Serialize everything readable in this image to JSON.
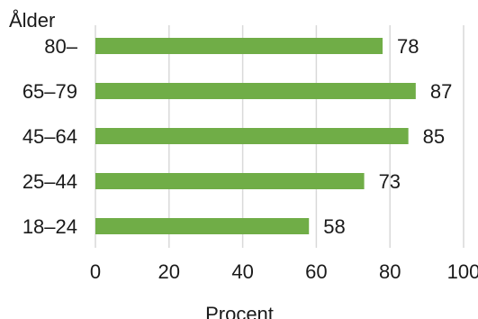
{
  "chart_data": {
    "type": "bar",
    "orientation": "horizontal",
    "category_axis_title": "Ålder",
    "xlabel": "Procent",
    "categories": [
      "80–",
      "65–79",
      "45–64",
      "25–44",
      "18–24"
    ],
    "values": [
      78,
      87,
      85,
      73,
      58
    ],
    "xlim": [
      0,
      100
    ],
    "xticks": [
      "0",
      "20",
      "40",
      "60",
      "80",
      "100"
    ],
    "grid": "vertical",
    "bar_color": "#70ad47",
    "gridline_color": "#d9d9d9"
  }
}
